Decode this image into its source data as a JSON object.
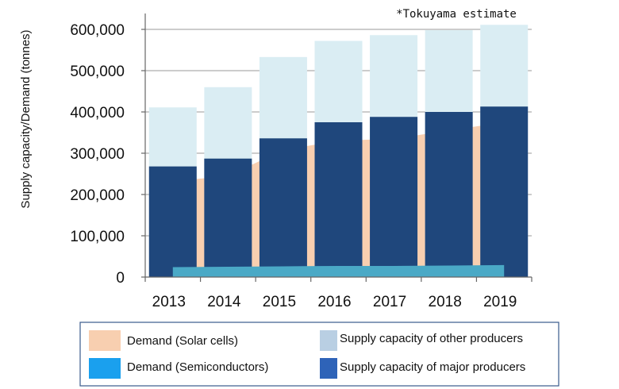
{
  "chart_data": {
    "type": "bar",
    "note": "*Tokuyama estimate",
    "ylabel": "Supply capacity/Demand (tonnes)",
    "xlabel": "",
    "categories": [
      "2013",
      "2014",
      "2015",
      "2016",
      "2017",
      "2018",
      "2019"
    ],
    "y_ticks": [
      "0",
      "100,000",
      "200,000",
      "300,000",
      "400,000",
      "500,000",
      "600,000"
    ],
    "ylim": [
      0,
      630000
    ],
    "grid": true,
    "legend_position": "bottom",
    "series": [
      {
        "name": "Supply capacity of major producers",
        "kind": "bar",
        "color": "#1f477c",
        "values": [
          268000,
          287000,
          336000,
          375000,
          388000,
          400000,
          413000
        ]
      },
      {
        "name": "Supply capacity of other producers",
        "kind": "bar-stacked-total",
        "color": "#daedf3",
        "values": [
          411000,
          460000,
          533000,
          572000,
          586000,
          598000,
          611000
        ]
      },
      {
        "name": "Demand (Solar cells)",
        "kind": "area",
        "color": "#f8cfb0",
        "values": [
          232000,
          245000,
          308000,
          330000,
          335000,
          355000,
          375000
        ]
      },
      {
        "name": "Demand (Semiconductors)",
        "kind": "area",
        "color": "#4aa9c6",
        "values": [
          24000,
          25000,
          26000,
          27000,
          27000,
          28000,
          29000
        ]
      }
    ],
    "legend": [
      {
        "label": "Demand (Solar cells)",
        "color": "#f8cfb0"
      },
      {
        "label": "Supply capacity of other producers",
        "color": "#b9cfe3"
      },
      {
        "label": "Demand (Semiconductors)",
        "color": "#1aa0ee"
      },
      {
        "label": "Supply capacity of major producers",
        "color": "#2e63b8"
      }
    ]
  }
}
